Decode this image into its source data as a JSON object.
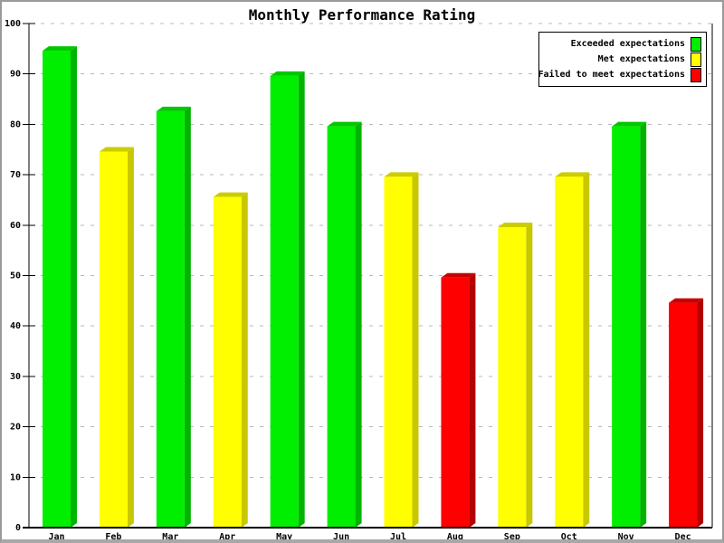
{
  "title": "Monthly Performance Rating",
  "legend": {
    "items": [
      {
        "label": "Exceeded expectations",
        "key": "exceeded"
      },
      {
        "label": "Met expectations",
        "key": "met"
      },
      {
        "label": "Failed to meet expectations",
        "key": "failed"
      }
    ]
  },
  "colors": {
    "grid": "#b8b8b8",
    "axis": "#000000",
    "background": "#ffffff"
  },
  "chart_data": {
    "type": "bar",
    "title": "Monthly Performance Rating",
    "categories": [
      "Jan",
      "Feb",
      "Mar",
      "Apr",
      "May",
      "Jun",
      "Jul",
      "Aug",
      "Sep",
      "Oct",
      "Nov",
      "Dec"
    ],
    "values": [
      95.5,
      75.5,
      83.5,
      66.5,
      90.5,
      80.5,
      70.5,
      50.5,
      60.5,
      70.5,
      80.5,
      45.5
    ],
    "color_keys": [
      "exceeded",
      "met",
      "exceeded",
      "met",
      "exceeded",
      "exceeded",
      "met",
      "failed",
      "met",
      "met",
      "exceeded",
      "failed"
    ],
    "series": [
      {
        "name": "Exceeded expectations",
        "key": "exceeded",
        "months": [
          "Jan",
          "Mar",
          "May",
          "Jun",
          "Nov"
        ]
      },
      {
        "name": "Met expectations",
        "key": "met",
        "months": [
          "Feb",
          "Apr",
          "Jul",
          "Sep",
          "Oct"
        ]
      },
      {
        "name": "Failed to meet expectations",
        "key": "failed",
        "months": [
          "Aug",
          "Dec"
        ]
      }
    ],
    "palette": {
      "exceeded": {
        "front": "#00ee00",
        "side": "#00b400",
        "top": "#00c800"
      },
      "met": {
        "front": "#ffff00",
        "side": "#c8c800",
        "top": "#cccc00"
      },
      "failed": {
        "front": "#ff0000",
        "side": "#b40000",
        "top": "#c80000"
      }
    },
    "xlabel": "",
    "ylabel": "",
    "ylim": [
      0,
      100
    ],
    "ytick_interval": 10,
    "grid": "horizontal-dashed",
    "legend_position": "top-right",
    "style": "3d-bars"
  }
}
